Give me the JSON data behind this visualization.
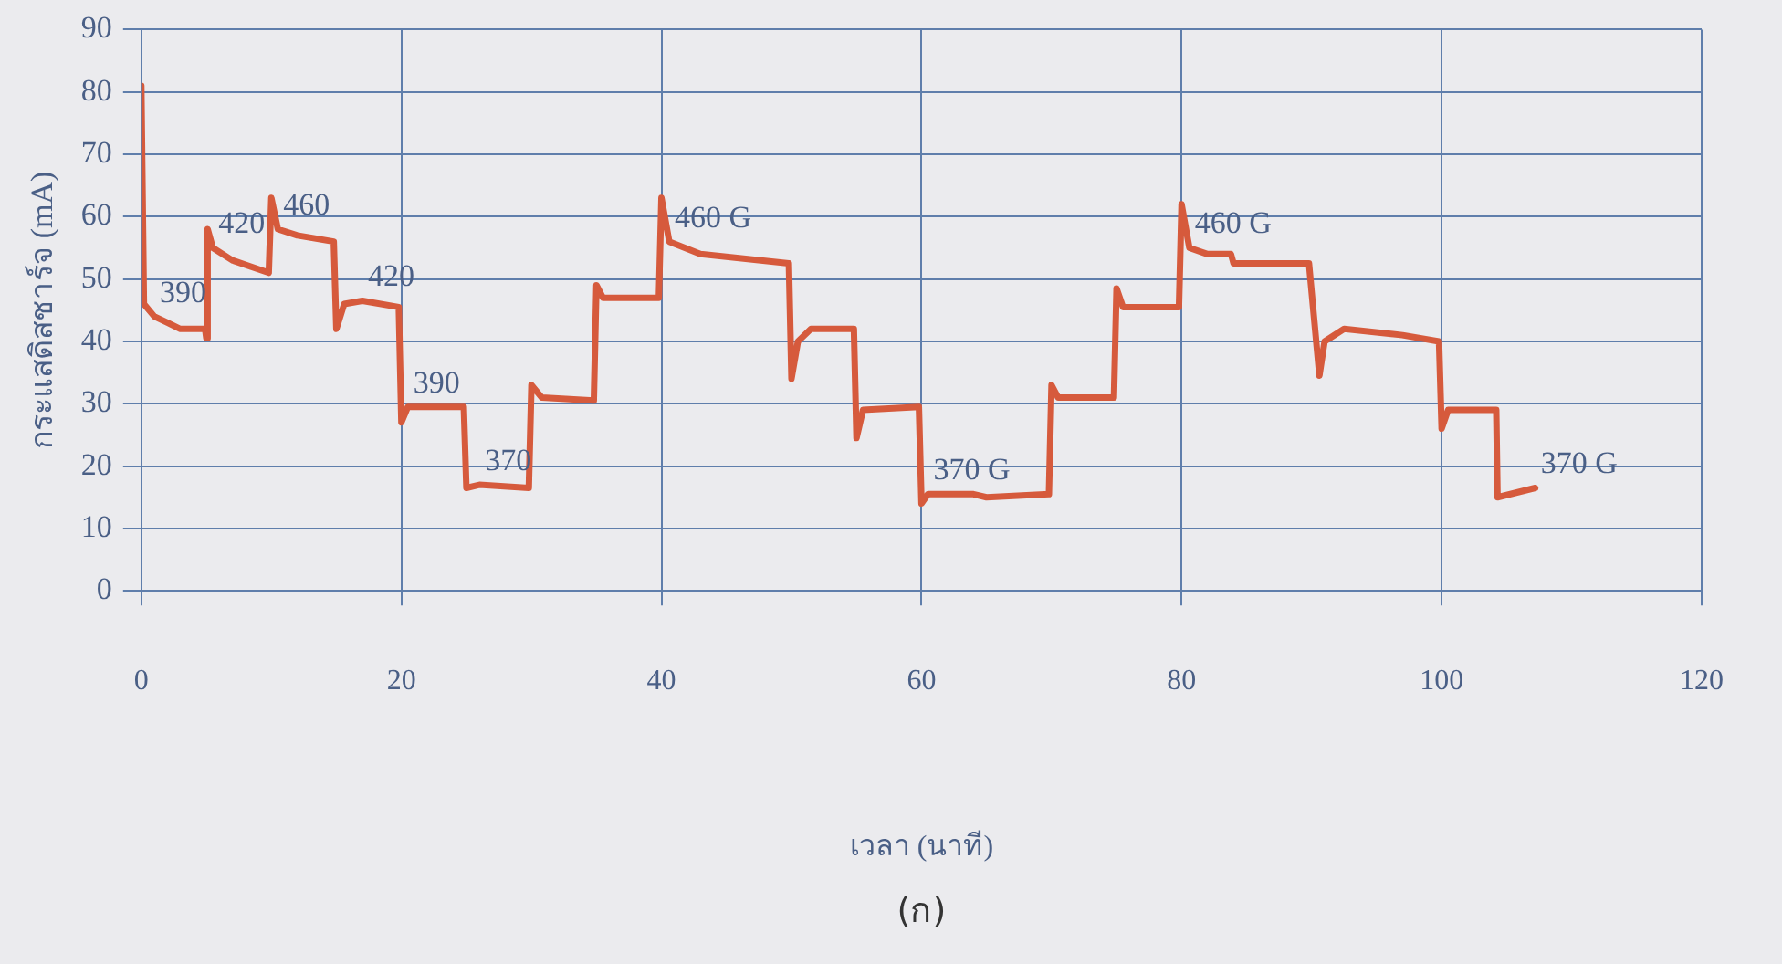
{
  "chart_data": {
    "type": "line",
    "xlabel": "เวลา (นาที)",
    "ylabel": "กระแสดิสชาร์จ (mA)",
    "xlim": [
      0,
      120
    ],
    "xticks": [
      0,
      20,
      40,
      60,
      80,
      100,
      120
    ],
    "ylim": [
      0,
      90
    ],
    "yticks": [
      0,
      10,
      20,
      30,
      40,
      50,
      60,
      70,
      80,
      90
    ],
    "grid": true,
    "marker": "none",
    "line_style": "solid",
    "series": [
      {
        "color": "#d65a3c",
        "x": [
          0,
          0.2,
          1,
          2,
          3,
          4.9,
          5,
          5.1,
          5.5,
          7,
          9.8,
          10,
          10.5,
          12,
          14.8,
          15,
          15.6,
          17,
          19.8,
          20,
          20.5,
          24.8,
          25,
          26,
          29.8,
          30,
          30.8,
          34.8,
          35,
          35.5,
          39.8,
          40,
          40.6,
          43,
          49.8,
          50,
          50.5,
          51.5,
          54.8,
          55,
          55.5,
          59.8,
          60,
          60.5,
          64,
          65,
          69.8,
          70,
          70.5,
          74.8,
          75,
          75.5,
          79.8,
          80,
          80.6,
          82,
          83.8,
          84,
          89.8,
          90.6,
          91,
          92.5,
          97,
          99.8,
          100,
          100.5,
          104.2,
          104.3,
          107.2
        ],
        "values": [
          81,
          46,
          44,
          43,
          42,
          42,
          40.5,
          58,
          55,
          53,
          51,
          63,
          58,
          57,
          56,
          42,
          46,
          46.5,
          45.5,
          27,
          29.5,
          29.5,
          16.5,
          17,
          16.5,
          33,
          31,
          30.5,
          49,
          47,
          47,
          63,
          56,
          54,
          52.5,
          34,
          40,
          42,
          42,
          24.5,
          29,
          29.5,
          14,
          15.5,
          15.5,
          15,
          15.5,
          33,
          31,
          31,
          48.5,
          45.5,
          45.5,
          62,
          55,
          54,
          54,
          52.5,
          52.5,
          34.5,
          40,
          42,
          41,
          40,
          26,
          29,
          29,
          15,
          16.5
        ]
      }
    ],
    "annotations": [
      {
        "text": "390",
        "x": 1,
        "y": 44
      },
      {
        "text": "420",
        "x": 5.5,
        "y": 55
      },
      {
        "text": "460",
        "x": 10.5,
        "y": 58
      },
      {
        "text": "420",
        "x": 17,
        "y": 46.5
      },
      {
        "text": "390",
        "x": 20.5,
        "y": 29.5
      },
      {
        "text": "370",
        "x": 26,
        "y": 17
      },
      {
        "text": "460 G",
        "x": 40.6,
        "y": 56
      },
      {
        "text": "370 G",
        "x": 60.5,
        "y": 15.5
      },
      {
        "text": "460 G",
        "x": 80.6,
        "y": 55
      },
      {
        "text": "370 G",
        "x": 107.2,
        "y": 16.5
      },
      "(ก)"
    ]
  }
}
